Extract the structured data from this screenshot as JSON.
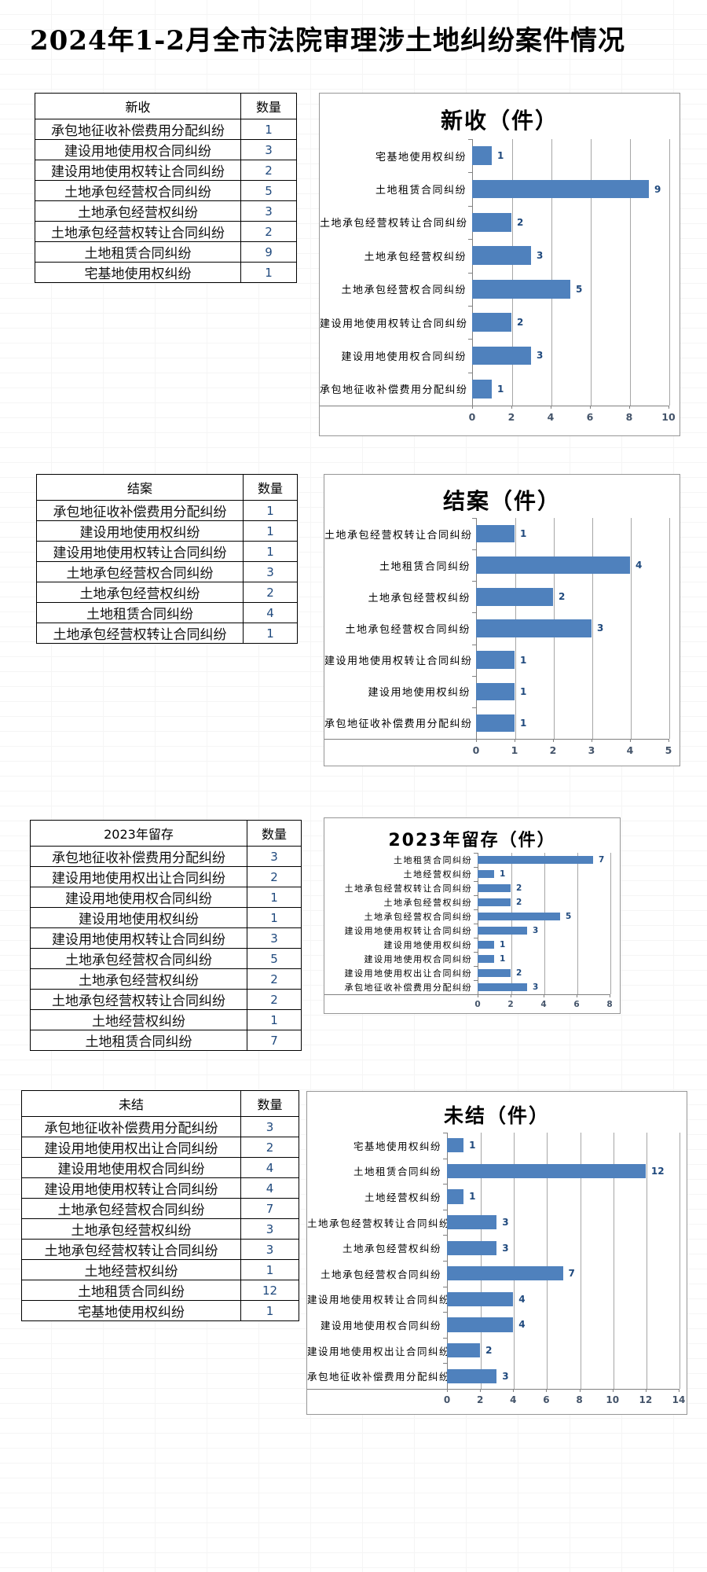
{
  "page_title": "2024年1-2月全市法院审理涉土地纠纷案件情况",
  "colors": {
    "bar": "#4F81BD",
    "value_label": "#1F497D",
    "table_number": "#1F497D",
    "tick_label": "#44546A",
    "gridline": "#A6A6A6",
    "axis_line": "#808080",
    "chart_border": "#969696"
  },
  "sections": [
    {
      "table": {
        "header": "新收",
        "count_header": "数量",
        "rows": [
          {
            "name": "承包地征收补偿费用分配纠纷",
            "value": "1"
          },
          {
            "name": "建设用地使用权合同纠纷",
            "value": "3"
          },
          {
            "name": "建设用地使用权转让合同纠纷",
            "value": "2"
          },
          {
            "name": "土地承包经营权合同纠纷",
            "value": "5"
          },
          {
            "name": "土地承包经营权纠纷",
            "value": "3"
          },
          {
            "name": "土地承包经营权转让合同纠纷",
            "value": "2"
          },
          {
            "name": "土地租赁合同纠纷",
            "value": "9"
          },
          {
            "name": "宅基地使用权纠纷",
            "value": "1"
          }
        ]
      }
    },
    {
      "table": {
        "header": "结案",
        "count_header": "数量",
        "rows": [
          {
            "name": "承包地征收补偿费用分配纠纷",
            "value": "1"
          },
          {
            "name": "建设用地使用权纠纷",
            "value": "1"
          },
          {
            "name": "建设用地使用权转让合同纠纷",
            "value": "1"
          },
          {
            "name": "土地承包经营权合同纠纷",
            "value": "3"
          },
          {
            "name": "土地承包经营权纠纷",
            "value": "2"
          },
          {
            "name": "土地租赁合同纠纷",
            "value": "4"
          },
          {
            "name": "土地承包经营权转让合同纠纷",
            "value": "1"
          }
        ]
      }
    },
    {
      "table": {
        "header": "2023年留存",
        "count_header": "数量",
        "rows": [
          {
            "name": "承包地征收补偿费用分配纠纷",
            "value": "3"
          },
          {
            "name": "建设用地使用权出让合同纠纷",
            "value": "2"
          },
          {
            "name": "建设用地使用权合同纠纷",
            "value": "1"
          },
          {
            "name": "建设用地使用权纠纷",
            "value": "1"
          },
          {
            "name": "建设用地使用权转让合同纠纷",
            "value": "3"
          },
          {
            "name": "土地承包经营权合同纠纷",
            "value": "5"
          },
          {
            "name": "土地承包经营权纠纷",
            "value": "2"
          },
          {
            "name": "土地承包经营权转让合同纠纷",
            "value": "2"
          },
          {
            "name": "土地经营权纠纷",
            "value": "1"
          },
          {
            "name": "土地租赁合同纠纷",
            "value": "7"
          }
        ]
      }
    },
    {
      "table": {
        "header": "未结",
        "count_header": "数量",
        "rows": [
          {
            "name": "承包地征收补偿费用分配纠纷",
            "value": "3"
          },
          {
            "name": "建设用地使用权出让合同纠纷",
            "value": "2"
          },
          {
            "name": "建设用地使用权合同纠纷",
            "value": "4"
          },
          {
            "name": "建设用地使用权转让合同纠纷",
            "value": "4"
          },
          {
            "name": "土地承包经营权合同纠纷",
            "value": "7"
          },
          {
            "name": "土地承包经营权纠纷",
            "value": "3"
          },
          {
            "name": "土地承包经营权转让合同纠纷",
            "value": "3"
          },
          {
            "name": "土地经营权纠纷",
            "value": "1"
          },
          {
            "name": "土地租赁合同纠纷",
            "value": "12"
          },
          {
            "name": "宅基地使用权纠纷",
            "value": "1"
          }
        ]
      }
    }
  ],
  "chart_data": [
    {
      "type": "bar",
      "orientation": "horizontal",
      "title": "新收（件）",
      "categories": [
        "宅基地使用权纠纷",
        "土地租赁合同纠纷",
        "土地承包经营权转让合同纠纷",
        "土地承包经营权纠纷",
        "土地承包经营权合同纠纷",
        "建设用地使用权转让合同纠纷",
        "建设用地使用权合同纠纷",
        "承包地征收补偿费用分配纠纷"
      ],
      "values": [
        1,
        9,
        2,
        3,
        5,
        2,
        3,
        1
      ],
      "xlim": [
        0,
        10
      ],
      "ticks": [
        0,
        2,
        4,
        6,
        8,
        10
      ],
      "grid": true,
      "legend": false
    },
    {
      "type": "bar",
      "orientation": "horizontal",
      "title": "结案（件）",
      "categories": [
        "土地承包经营权转让合同纠纷",
        "土地租赁合同纠纷",
        "土地承包经营权纠纷",
        "土地承包经营权合同纠纷",
        "建设用地使用权转让合同纠纷",
        "建设用地使用权纠纷",
        "承包地征收补偿费用分配纠纷"
      ],
      "values": [
        1,
        4,
        2,
        3,
        1,
        1,
        1
      ],
      "xlim": [
        0,
        5
      ],
      "ticks": [
        0,
        1,
        2,
        3,
        4,
        5
      ],
      "grid": true,
      "legend": false
    },
    {
      "type": "bar",
      "orientation": "horizontal",
      "title": "2023年留存（件）",
      "categories": [
        "土地租赁合同纠纷",
        "土地经营权纠纷",
        "土地承包经营权转让合同纠纷",
        "土地承包经营权纠纷",
        "土地承包经营权合同纠纷",
        "建设用地使用权转让合同纠纷",
        "建设用地使用权纠纷",
        "建设用地使用权合同纠纷",
        "建设用地使用权出让合同纠纷",
        "承包地征收补偿费用分配纠纷"
      ],
      "values": [
        7,
        1,
        2,
        2,
        5,
        3,
        1,
        1,
        2,
        3
      ],
      "xlim": [
        0,
        8
      ],
      "ticks": [
        0,
        2,
        4,
        6,
        8
      ],
      "grid": true,
      "legend": false
    },
    {
      "type": "bar",
      "orientation": "horizontal",
      "title": "未结（件）",
      "categories": [
        "宅基地使用权纠纷",
        "土地租赁合同纠纷",
        "土地经营权纠纷",
        "土地承包经营权转让合同纠纷",
        "土地承包经营权纠纷",
        "土地承包经营权合同纠纷",
        "建设用地使用权转让合同纠纷",
        "建设用地使用权合同纠纷",
        "建设用地使用权出让合同纠纷",
        "承包地征收补偿费用分配纠纷"
      ],
      "values": [
        1,
        12,
        1,
        3,
        3,
        7,
        4,
        4,
        2,
        3
      ],
      "xlim": [
        0,
        14
      ],
      "ticks": [
        0,
        2,
        4,
        6,
        8,
        10,
        12,
        14
      ],
      "grid": true,
      "legend": false
    }
  ]
}
